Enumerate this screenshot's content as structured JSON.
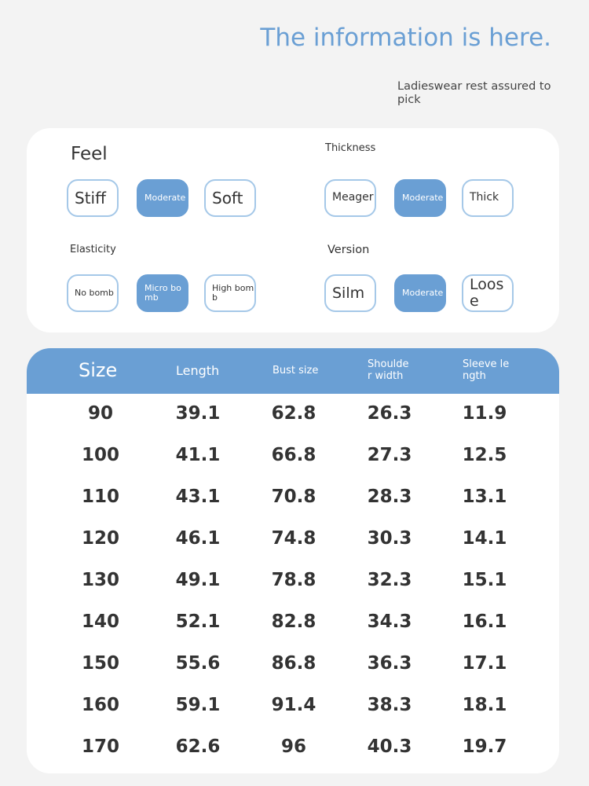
{
  "header": {
    "title": "The information is here.",
    "subtitle": "Ladieswear rest assured to pick"
  },
  "attributes": [
    {
      "label": "Feel",
      "options": [
        "Stiff",
        "Moderate",
        "Soft"
      ],
      "selected": 1
    },
    {
      "label": "Thickness",
      "options": [
        "Meager",
        "Moderate",
        "Thick"
      ],
      "selected": 1
    },
    {
      "label": "Elasticity",
      "options": [
        "No bomb",
        "Micro bomb",
        "High bomb"
      ],
      "selected": 1
    },
    {
      "label": "Version",
      "options": [
        "Silm",
        "Moderate",
        "Loose"
      ],
      "selected": 1
    }
  ],
  "table": {
    "headers": [
      "Size",
      "Length",
      "Bust size",
      "Shoulder width",
      "Sleeve length"
    ],
    "rows": [
      [
        "90",
        "39.1",
        "62.8",
        "26.3",
        "11.9"
      ],
      [
        "100",
        "41.1",
        "66.8",
        "27.3",
        "12.5"
      ],
      [
        "110",
        "43.1",
        "70.8",
        "28.3",
        "13.1"
      ],
      [
        "120",
        "46.1",
        "74.8",
        "30.3",
        "14.1"
      ],
      [
        "130",
        "49.1",
        "78.8",
        "32.3",
        "15.1"
      ],
      [
        "140",
        "52.1",
        "82.8",
        "34.3",
        "16.1"
      ],
      [
        "150",
        "55.6",
        "86.8",
        "36.3",
        "17.1"
      ],
      [
        "160",
        "59.1",
        "91.4",
        "38.3",
        "18.1"
      ],
      [
        "170",
        "62.6",
        "96",
        "40.3",
        "19.7"
      ]
    ]
  }
}
